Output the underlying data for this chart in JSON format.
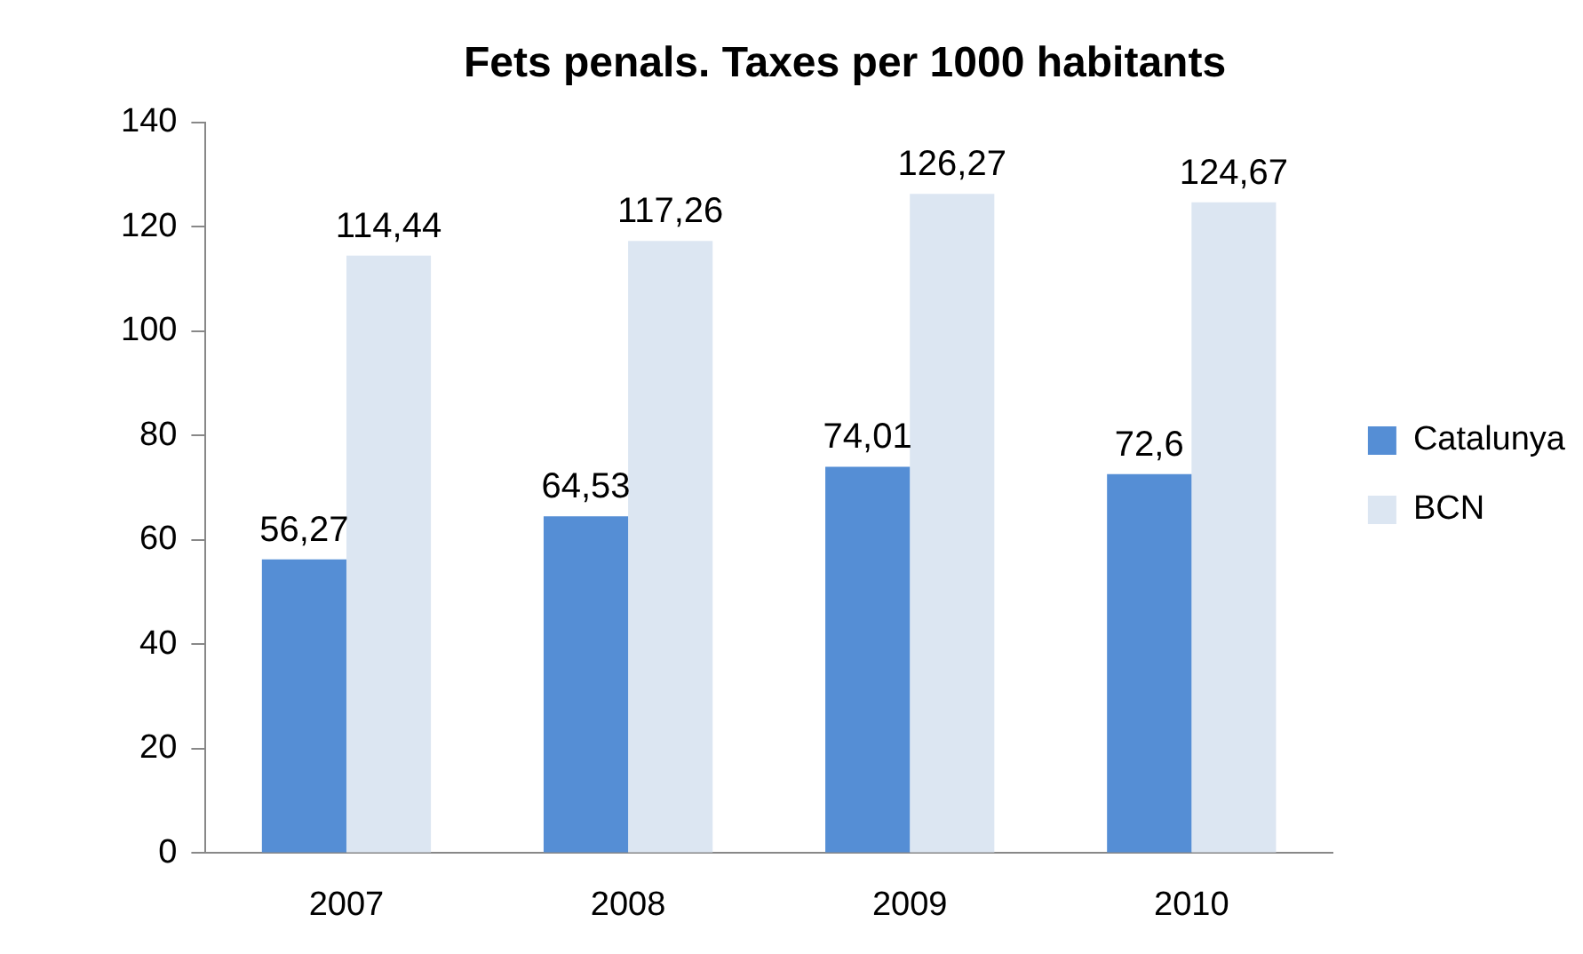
{
  "chart_data": {
    "type": "bar",
    "title": "Fets penals. Taxes per 1000 habitants",
    "categories": [
      "2007",
      "2008",
      "2009",
      "2010"
    ],
    "series": [
      {
        "name": "Catalunya",
        "color": "#558ed5",
        "values": [
          56.27,
          64.53,
          74.01,
          72.6
        ],
        "value_labels": [
          "56,27",
          "64,53",
          "74,01",
          "72,6"
        ]
      },
      {
        "name": "BCN",
        "color": "#dce6f2",
        "values": [
          114.44,
          117.26,
          126.27,
          124.67
        ],
        "value_labels": [
          "114,44",
          "117,26",
          "126,27",
          "124,67"
        ]
      }
    ],
    "ylim": [
      0,
      140
    ],
    "yticks": [
      0,
      20,
      40,
      60,
      80,
      100,
      120,
      140
    ],
    "grid": false,
    "legend": "right"
  }
}
